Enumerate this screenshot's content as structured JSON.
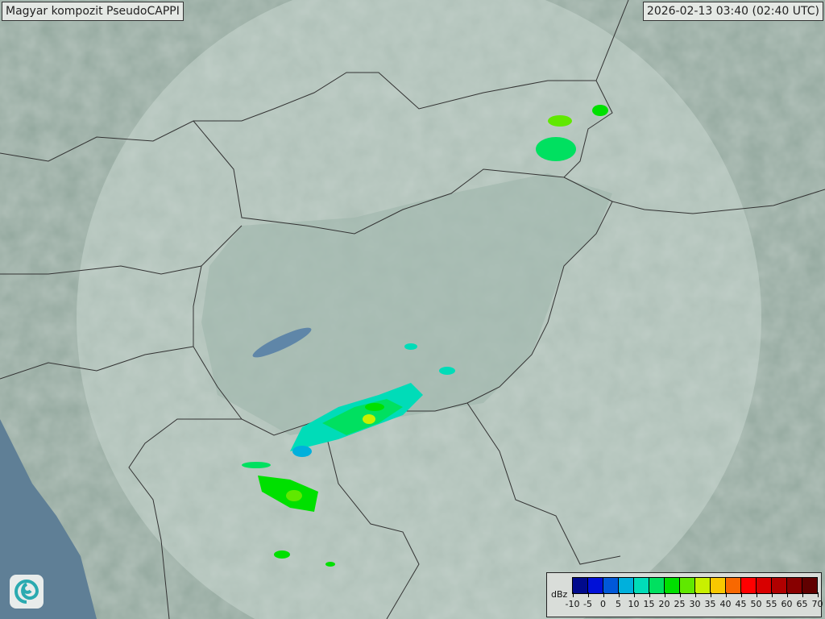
{
  "header": {
    "title": "Magyar kompozit  PseudoCAPPI",
    "timestamp": "2026-02-13 03:40 (02:40 UTC)"
  },
  "legend": {
    "unit": "dBz",
    "ticks": [
      "-10",
      "-5",
      "0",
      "5",
      "10",
      "15",
      "20",
      "25",
      "30",
      "35",
      "40",
      "45",
      "50",
      "55",
      "60",
      "65",
      "70"
    ],
    "colors": [
      "#000a8c",
      "#0010d8",
      "#0058d8",
      "#00b0dc",
      "#00dcb8",
      "#00e060",
      "#00e000",
      "#60e800",
      "#c8f000",
      "#f8c800",
      "#f86800",
      "#ff0000",
      "#d80000",
      "#b00000",
      "#880000",
      "#600000"
    ]
  },
  "logo": {
    "icon": "swirl-logo-icon"
  }
}
